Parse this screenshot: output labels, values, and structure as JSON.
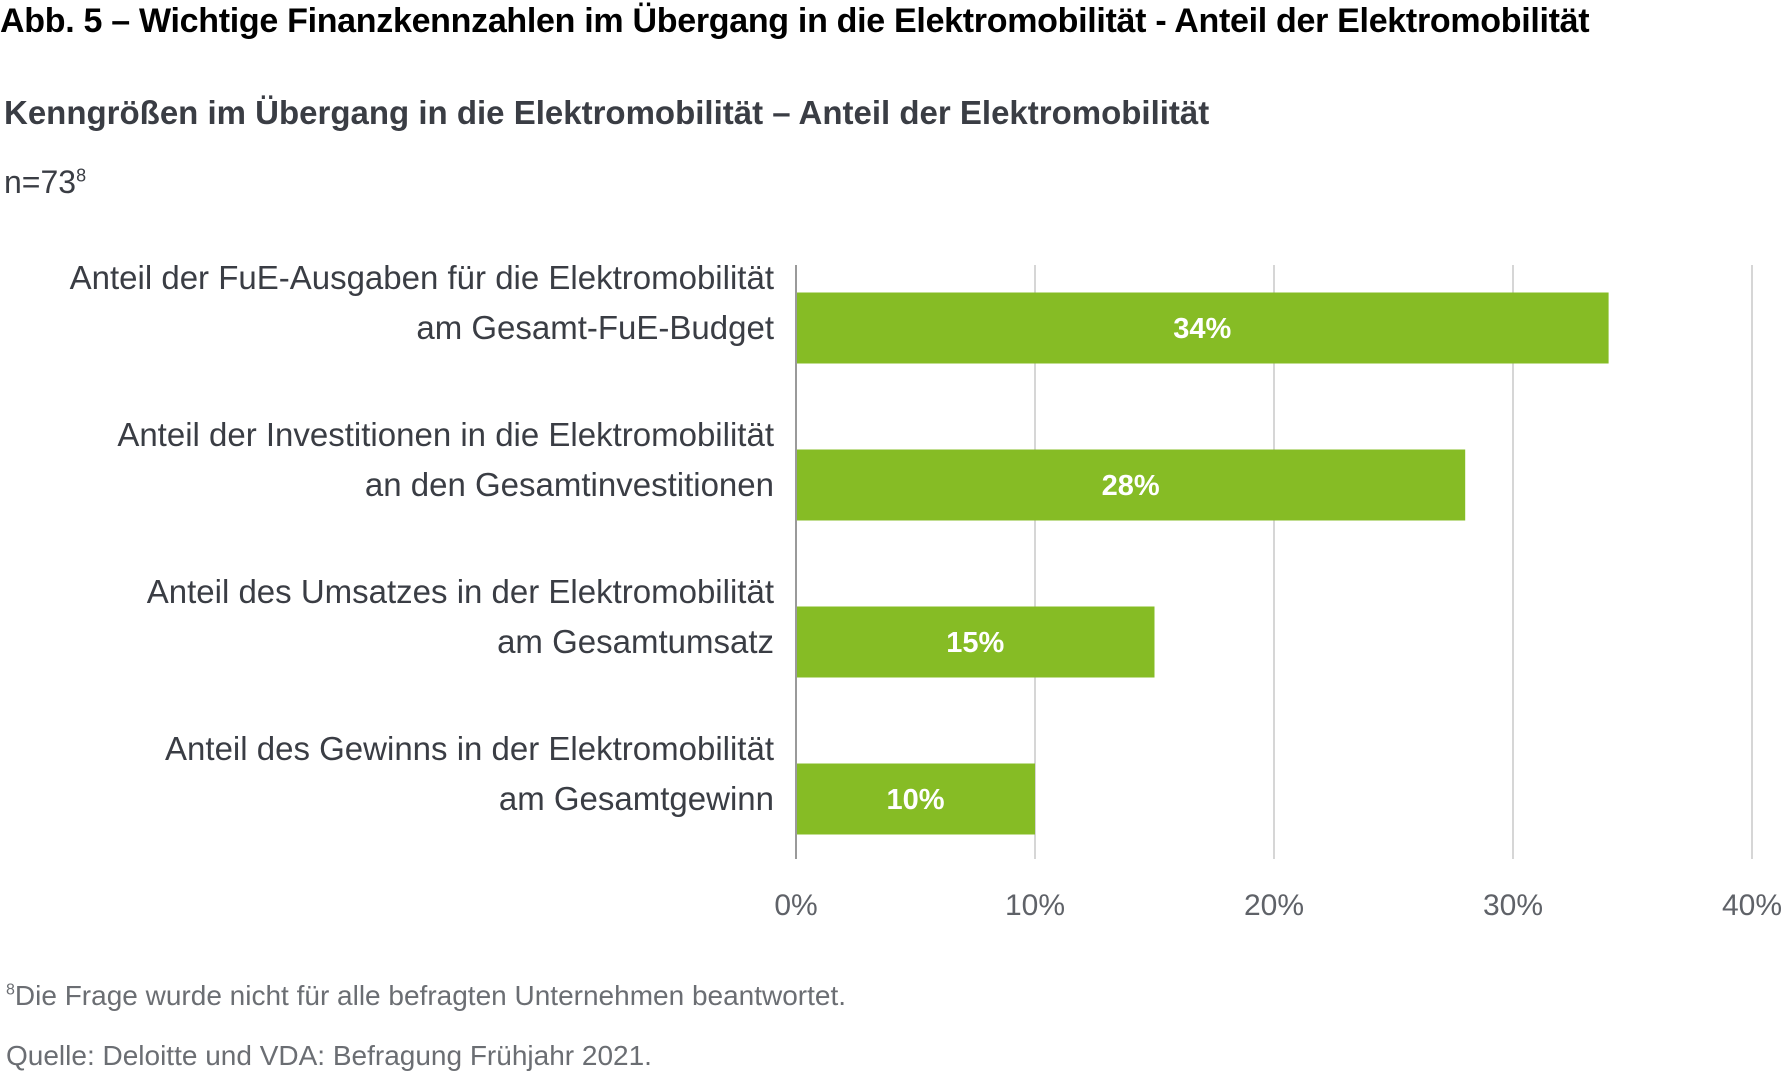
{
  "header": {
    "title": "Abb. 5 – Wichtige Finanzkennzahlen im Übergang in die Elektromobilität - Anteil der Elektromobilität",
    "subtitle": "Kenngrößen im Übergang in die Elektromobilität – Anteil der Elektromobilität",
    "sample": "n=73",
    "sample_footnote_ref": "8"
  },
  "chart_data": {
    "type": "bar",
    "orientation": "horizontal",
    "categories": [
      [
        "Anteil der FuE-Ausgaben für die Elektromobilität",
        "am Gesamt-FuE-Budget"
      ],
      [
        "Anteil der Investitionen in die Elektromobilität",
        "an den Gesamtinvestitionen"
      ],
      [
        "Anteil des Umsatzes in der Elektromobilität",
        "am Gesamtumsatz"
      ],
      [
        "Anteil des Gewinns in der Elektromobilität",
        "am Gesamtgewinn"
      ]
    ],
    "values": [
      34,
      28,
      15,
      10
    ],
    "data_labels": [
      "34%",
      "28%",
      "15%",
      "10%"
    ],
    "xlim": [
      0,
      40
    ],
    "xticks": [
      0,
      10,
      20,
      30,
      40
    ],
    "xtick_labels": [
      "0%",
      "10%",
      "20%",
      "30%",
      "40%"
    ],
    "grid": "vertical",
    "bar_color": "#86bc25",
    "xlabel": "",
    "ylabel": ""
  },
  "footer": {
    "footnote_number": "8",
    "footnote": "Die Frage wurde nicht für alle befragten Unternehmen beantwortet.",
    "source": "Quelle: Deloitte und VDA: Befragung Frühjahr 2021."
  }
}
